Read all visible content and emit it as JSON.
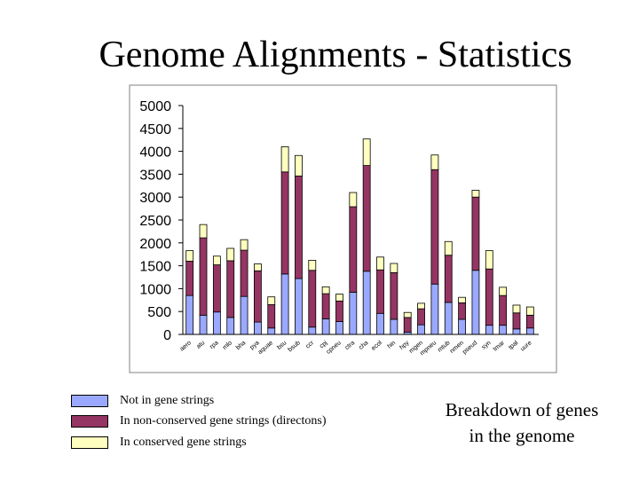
{
  "title": "Genome Alignments - Statistics",
  "caption": [
    "Breakdown of genes",
    "in the genome"
  ],
  "colors": {
    "not_in_strings": "#9aa9ff",
    "non_conserved": "#953563",
    "conserved": "#ffffc0",
    "border": "#000000"
  },
  "chart_data": {
    "type": "bar",
    "stacked": true,
    "ylim": [
      0,
      5000
    ],
    "y_ticks": [
      "5000",
      "4500",
      "4000",
      "3500",
      "3000",
      "2500",
      "2000",
      "1500",
      "1000",
      "500",
      "0"
    ],
    "grid": false,
    "legend_position": "bottom-left",
    "categories": [
      "aero",
      "atu",
      "rpa",
      "mlo",
      "bha",
      "pya",
      "aquae",
      "bsu",
      "bsub",
      "ccr",
      "cpj",
      "cpneu",
      "ctra",
      "cha",
      "ecol",
      "hin",
      "hpy",
      "mgen",
      "mpneu",
      "mtub",
      "nmen",
      "pseud",
      "syn",
      "tmar",
      "tpal",
      "uure"
    ],
    "series": [
      {
        "name": "Not in gene strings",
        "values": [
          850,
          420,
          490,
          370,
          830,
          270,
          140,
          1320,
          1220,
          160,
          340,
          280,
          920,
          1380,
          460,
          330,
          50,
          210,
          1100,
          700,
          330,
          1400,
          200,
          200,
          120,
          140
        ]
      },
      {
        "name": "In non-conserved gene strings (directons)",
        "values": [
          750,
          1690,
          1030,
          1240,
          1010,
          1120,
          510,
          2230,
          2240,
          1240,
          550,
          450,
          1870,
          2310,
          950,
          1020,
          320,
          350,
          2500,
          1030,
          360,
          1600,
          1230,
          650,
          350,
          280
        ]
      },
      {
        "name": "In conserved gene strings",
        "values": [
          230,
          290,
          190,
          270,
          230,
          150,
          170,
          550,
          450,
          220,
          150,
          150,
          310,
          580,
          280,
          200,
          110,
          120,
          320,
          300,
          120,
          150,
          400,
          180,
          170,
          180
        ]
      }
    ]
  }
}
